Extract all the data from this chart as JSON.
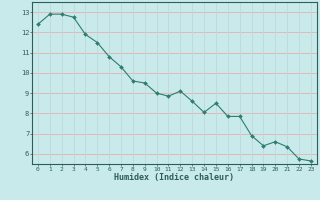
{
  "x": [
    0,
    1,
    2,
    3,
    4,
    5,
    6,
    7,
    8,
    9,
    10,
    11,
    12,
    13,
    14,
    15,
    16,
    17,
    18,
    19,
    20,
    21,
    22,
    23
  ],
  "y": [
    12.4,
    12.9,
    12.9,
    12.75,
    11.9,
    11.5,
    10.8,
    10.3,
    9.6,
    9.5,
    9.0,
    8.85,
    9.1,
    8.6,
    8.05,
    8.5,
    7.85,
    7.85,
    6.9,
    6.4,
    6.6,
    6.35,
    5.75,
    5.65
  ],
  "line_color": "#2e7d6e",
  "marker": "D",
  "marker_size": 2.0,
  "bg_color": "#c8eaea",
  "grid_color_h": "#e8b0b0",
  "grid_color_v": "#c0d8d8",
  "tick_color": "#2e5c5c",
  "xlabel": "Humidex (Indice chaleur)",
  "xlim": [
    -0.5,
    23.5
  ],
  "ylim": [
    5.5,
    13.5
  ],
  "yticks": [
    6,
    7,
    8,
    9,
    10,
    11,
    12,
    13
  ],
  "xticks": [
    0,
    1,
    2,
    3,
    4,
    5,
    6,
    7,
    8,
    9,
    10,
    11,
    12,
    13,
    14,
    15,
    16,
    17,
    18,
    19,
    20,
    21,
    22,
    23
  ]
}
